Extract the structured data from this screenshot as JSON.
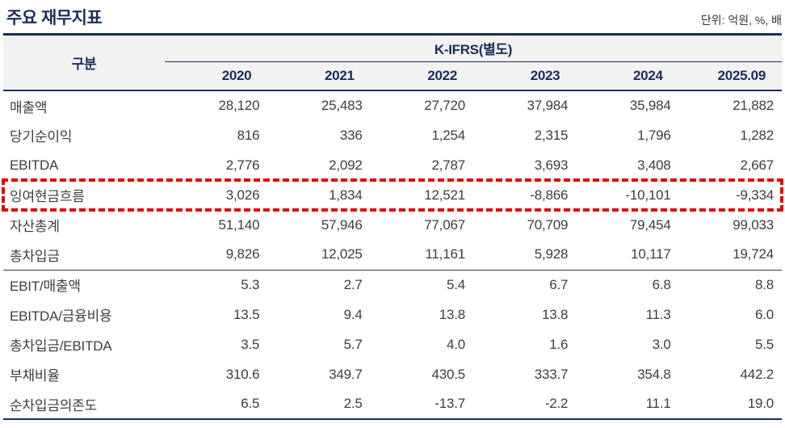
{
  "title": "주요 재무지표",
  "unit_note": "단위: 억원, %, 배",
  "colors": {
    "navy": "#1b2d5b",
    "red": "#e60000",
    "header_bg": "#f2f2f2",
    "body_text": "#3d3d3d"
  },
  "table": {
    "corner_label": "구분",
    "group_header": "K-IFRS(별도)",
    "columns": [
      "2020",
      "2021",
      "2022",
      "2023",
      "2024",
      "2025.09"
    ],
    "rows": [
      {
        "label": "매출액",
        "highlight": false,
        "values": [
          "28,120",
          "25,483",
          "27,720",
          "37,984",
          "35,984",
          "21,882"
        ]
      },
      {
        "label": "당기순이익",
        "highlight": false,
        "values": [
          "816",
          "336",
          "1,254",
          "2,315",
          "1,796",
          "1,282"
        ]
      },
      {
        "label": "EBITDA",
        "highlight": false,
        "values": [
          "2,776",
          "2,092",
          "2,787",
          "3,693",
          "3,408",
          "2,667"
        ]
      },
      {
        "label": "잉여현금흐름",
        "highlight": true,
        "values": [
          "3,026",
          "1,834",
          "12,521",
          "-8,866",
          "-10,101",
          "-9,334"
        ]
      },
      {
        "label": "자산총계",
        "highlight": false,
        "values": [
          "51,140",
          "57,946",
          "77,067",
          "70,709",
          "79,454",
          "99,033"
        ]
      },
      {
        "label": "총차입금",
        "highlight": false,
        "values": [
          "9,826",
          "12,025",
          "11,161",
          "5,928",
          "10,117",
          "19,724"
        ]
      },
      {
        "label": "EBIT/매출액",
        "highlight": false,
        "values": [
          "5.3",
          "2.7",
          "5.4",
          "6.7",
          "6.8",
          "8.8"
        ]
      },
      {
        "label": "EBITDA/금융비용",
        "highlight": false,
        "values": [
          "13.5",
          "9.4",
          "13.8",
          "13.8",
          "11.3",
          "6.0"
        ]
      },
      {
        "label": "총차입금/EBITDA",
        "highlight": false,
        "values": [
          "3.5",
          "5.7",
          "4.0",
          "1.6",
          "3.0",
          "5.5"
        ]
      },
      {
        "label": "부채비율",
        "highlight": false,
        "values": [
          "310.6",
          "349.7",
          "430.5",
          "333.7",
          "354.8",
          "442.2"
        ]
      },
      {
        "label": "순차입금의존도",
        "highlight": false,
        "values": [
          "6.5",
          "2.5",
          "-13.7",
          "-2.2",
          "11.1",
          "19.0"
        ]
      }
    ]
  }
}
